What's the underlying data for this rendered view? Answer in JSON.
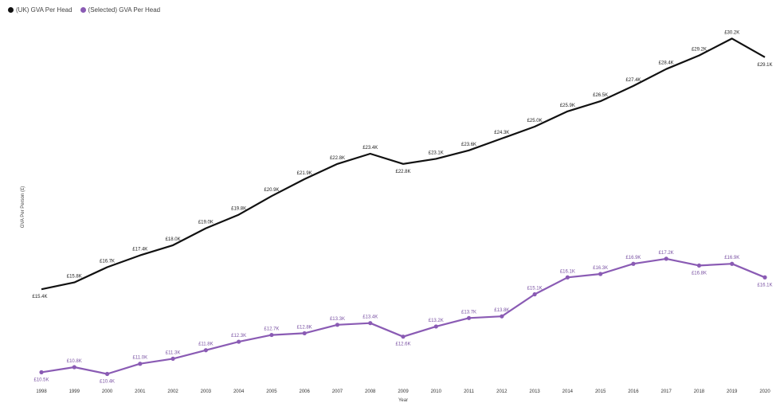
{
  "chart_data": {
    "type": "line",
    "title": "",
    "xlabel": "Year",
    "ylabel": "GVA Per Person (£)",
    "legend_position": "top-left",
    "grid": false,
    "ylim": [
      10,
      30.5
    ],
    "categories": [
      "1998",
      "1999",
      "2000",
      "2001",
      "2002",
      "2003",
      "2004",
      "2005",
      "2006",
      "2007",
      "2008",
      "2009",
      "2010",
      "2011",
      "2012",
      "2013",
      "2014",
      "2015",
      "2016",
      "2017",
      "2018",
      "2019",
      "2020"
    ],
    "series": [
      {
        "name": "(UK) GVA Per Head",
        "color": "#111111",
        "values": [
          15.4,
          15.8,
          16.7,
          17.4,
          18.0,
          19.0,
          19.8,
          20.9,
          21.9,
          22.8,
          23.4,
          22.8,
          23.1,
          23.6,
          24.3,
          25.0,
          25.9,
          26.5,
          27.4,
          28.4,
          29.2,
          30.2,
          29.1
        ],
        "labels": [
          "£15.4K",
          "£15.8K",
          "£16.7K",
          "£17.4K",
          "£18.0K",
          "£19.0K",
          "£19.8K",
          "£20.9K",
          "£21.9K",
          "£22.8K",
          "£23.4K",
          "£22.8K",
          "£23.1K",
          "£23.6K",
          "£24.3K",
          "£25.0K",
          "£25.9K",
          "£26.5K",
          "£27.4K",
          "£28.4K",
          "£29.2K",
          "£30.2K",
          "£29.1K"
        ]
      },
      {
        "name": "(Selected) GVA Per Head",
        "color": "#8a5bb4",
        "values": [
          10.5,
          10.8,
          10.4,
          11.0,
          11.3,
          11.8,
          12.3,
          12.7,
          12.8,
          13.3,
          13.4,
          12.6,
          13.2,
          13.7,
          13.8,
          15.1,
          16.1,
          16.3,
          16.9,
          17.2,
          16.8,
          16.9,
          16.1
        ],
        "labels": [
          "£10.5K",
          "£10.8K",
          "£10.4K",
          "£11.0K",
          "£11.3K",
          "£11.8K",
          "£12.3K",
          "£12.7K",
          "£12.8K",
          "£13.3K",
          "£13.4K",
          "£12.6K",
          "£13.2K",
          "£13.7K",
          "£13.8K",
          "£15.1K",
          "£16.1K",
          "£16.3K",
          "£16.9K",
          "£17.2K",
          "£16.8K",
          "£16.9K",
          "£16.1K"
        ]
      }
    ]
  }
}
